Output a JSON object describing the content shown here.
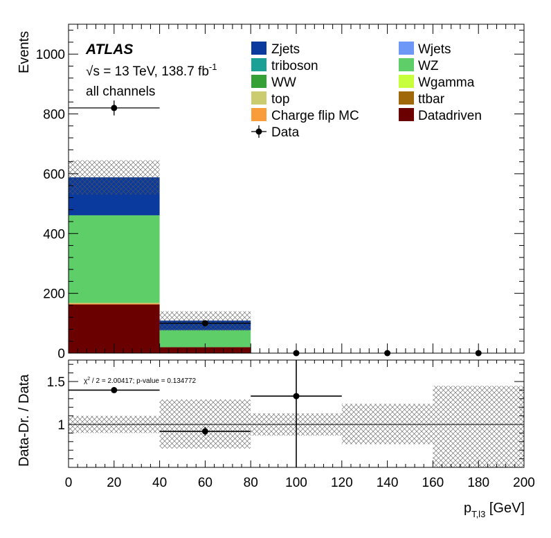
{
  "chart_data": {
    "type": "stacked-histogram-with-ratio",
    "experiment": "ATLAS",
    "energy_label": "√s = 13 TeV, 138.7 fb",
    "energy_sqrt": "√",
    "energy_rest": "s = 13 TeV, 138.7 fb",
    "lumi_exp": "-1",
    "channel_label": "all channels",
    "upper": {
      "ylabel": "Events",
      "ylim": [
        0,
        1100
      ],
      "yticks": [
        0,
        200,
        400,
        600,
        800,
        1000
      ],
      "bins": [
        [
          0,
          40
        ],
        [
          40,
          80
        ],
        [
          80,
          120
        ],
        [
          120,
          160
        ],
        [
          160,
          200
        ]
      ],
      "stack": [
        {
          "name": "Datadriven",
          "color": "#6b0000",
          "values": [
            163,
            20,
            0,
            0,
            0
          ]
        },
        {
          "name": "Charge flip MC",
          "color": "#f99c3a",
          "values": [
            3,
            0,
            0,
            0,
            0
          ]
        },
        {
          "name": "ttbar",
          "color": "#a06808",
          "values": [
            0,
            0,
            0,
            0,
            0
          ]
        },
        {
          "name": "top",
          "color": "#cbcb70",
          "values": [
            2,
            0,
            0,
            0,
            0
          ]
        },
        {
          "name": "Wgamma",
          "color": "#c8ff3c",
          "values": [
            0,
            0,
            0,
            0,
            0
          ]
        },
        {
          "name": "WW",
          "color": "#35a035",
          "values": [
            0,
            0,
            0,
            0,
            0
          ]
        },
        {
          "name": "WZ",
          "color": "#5dce68",
          "values": [
            293,
            57,
            0,
            0,
            0
          ]
        },
        {
          "name": "triboson",
          "color": "#1aa095",
          "values": [
            0,
            0,
            0,
            0,
            0
          ]
        },
        {
          "name": "Wjets",
          "color": "#6d98f7",
          "values": [
            0,
            0,
            0,
            0,
            0
          ]
        },
        {
          "name": "Zjets",
          "color": "#0a3a9d",
          "values": [
            127,
            32,
            0,
            0,
            0
          ]
        }
      ],
      "uncertainty_band": {
        "low": [
          530,
          75,
          0,
          0,
          0
        ],
        "high": [
          645,
          140,
          0,
          0,
          0
        ]
      },
      "data": {
        "name": "Data",
        "values": [
          820,
          100,
          0,
          0,
          0
        ],
        "errors": [
          25,
          10,
          0,
          0,
          0
        ]
      }
    },
    "legend": {
      "left": [
        "Zjets",
        "triboson",
        "WW",
        "top",
        "Charge flip MC",
        "Data"
      ],
      "right": [
        "Wjets",
        "WZ",
        "Wgamma",
        "ttbar",
        "Datadriven"
      ]
    },
    "ratio": {
      "ylabel": "Data-Dr. / Data",
      "ylim": [
        0.5,
        1.75
      ],
      "yticks": [
        "1",
        "1.5"
      ],
      "chi2_prefix": "χ",
      "chi2_sup": "2",
      "chi2_text": " / 2 = 2.00417; p-value = 0.134772",
      "points": [
        {
          "x": 20,
          "y": 1.4,
          "yerr": 0.03
        },
        {
          "x": 60,
          "y": 0.92,
          "yerr": 0.05
        },
        {
          "x": 100,
          "y": 1.33,
          "yerr": 0.9
        }
      ],
      "uncertainty_band": {
        "low": [
          0.9,
          0.72,
          0.87,
          0.77,
          0.5
        ],
        "high": [
          1.1,
          1.29,
          1.13,
          1.24,
          1.45
        ]
      }
    },
    "xaxis": {
      "label_main": "p",
      "label_sub": "T,l3",
      "label_unit": " [GeV]",
      "xlim": [
        0,
        200
      ],
      "ticks": [
        0,
        20,
        40,
        60,
        80,
        100,
        120,
        140,
        160,
        180,
        200
      ]
    }
  }
}
